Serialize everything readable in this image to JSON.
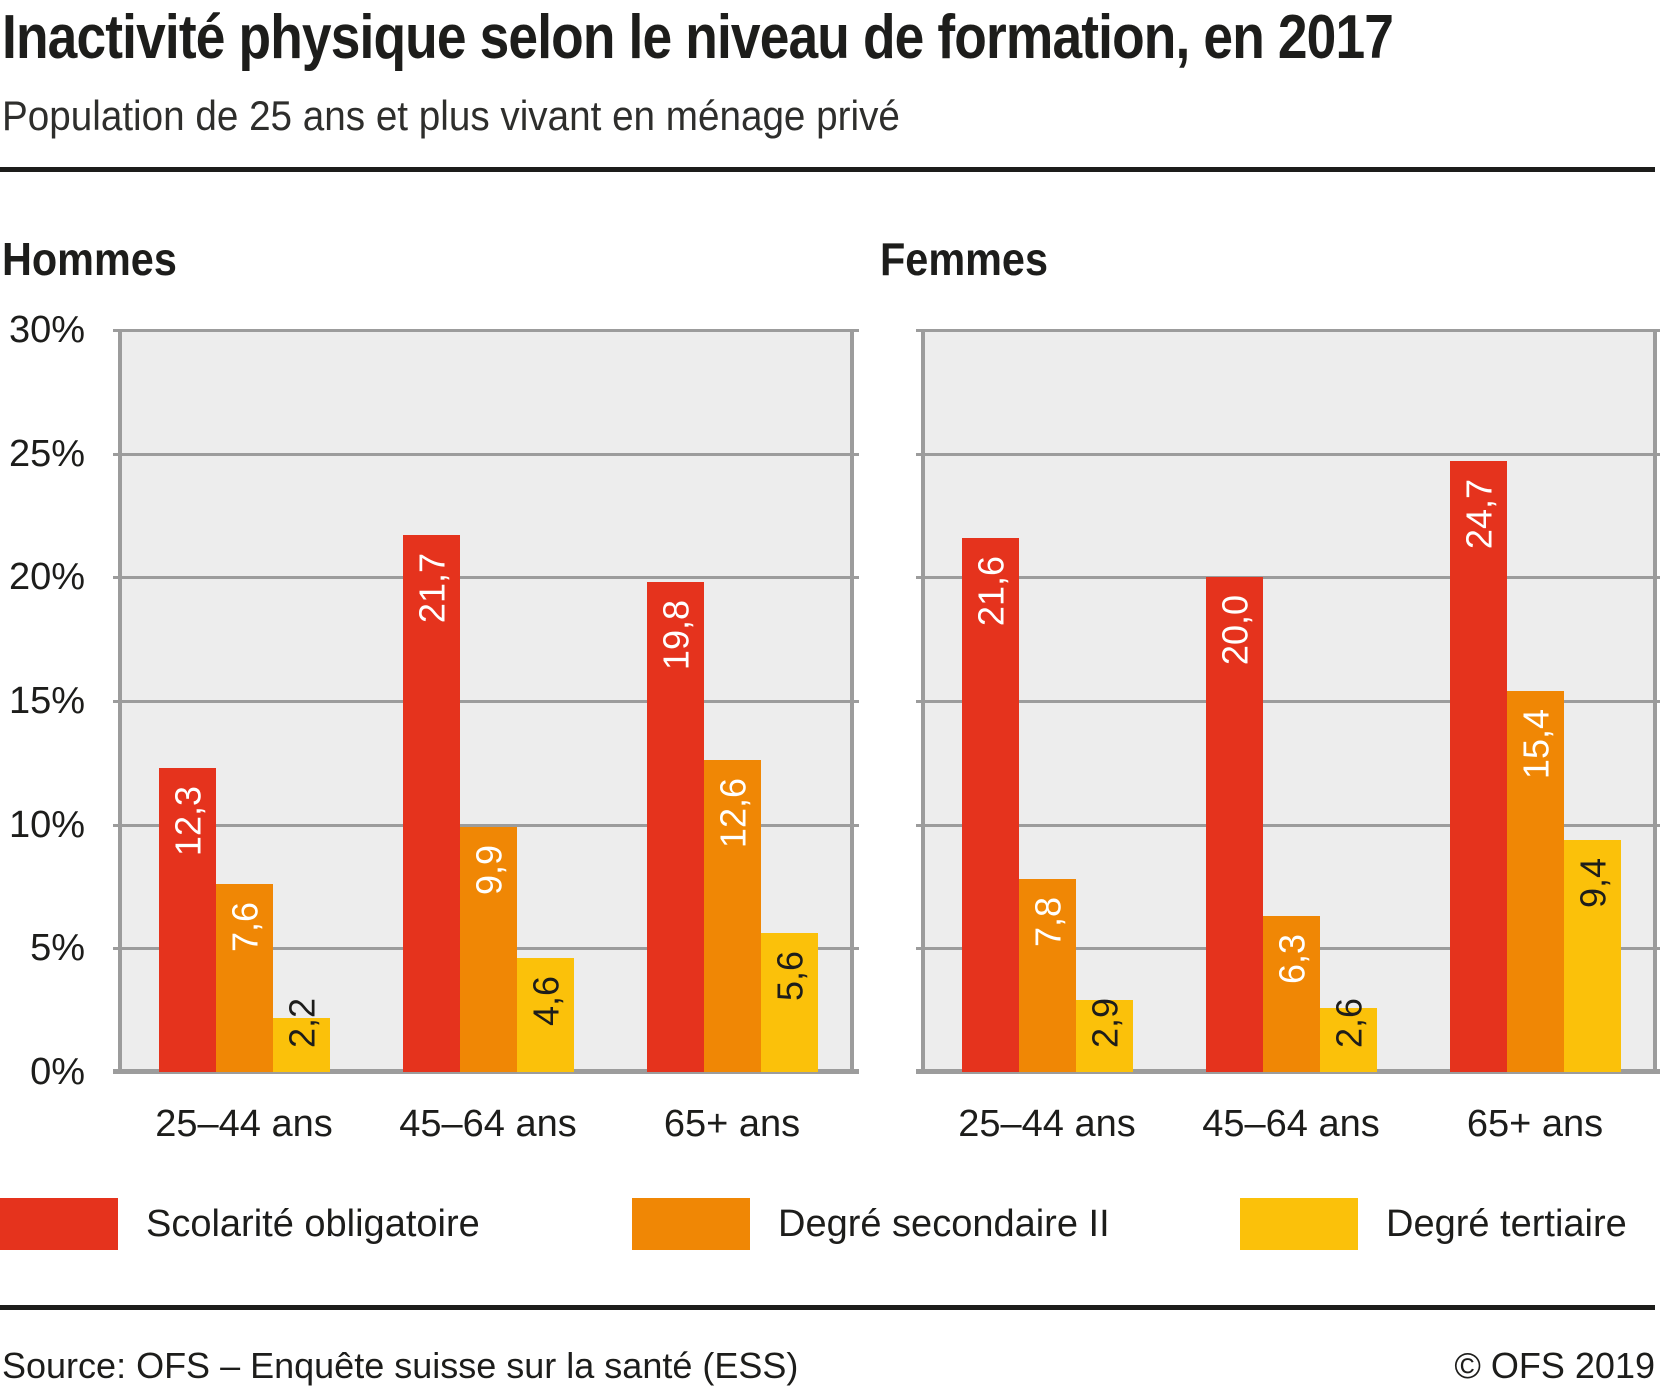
{
  "title": "Inactivité physique selon le niveau de formation, en 2017",
  "subtitle": "Population de 25 ans et plus vivant en ménage privé",
  "colors": {
    "red": "#e5331d",
    "orange": "#f08705",
    "yellow": "#fbc10a",
    "plot_bg": "#ededed",
    "grid": "#9c9c9c",
    "text_dark": "#1d1d1b",
    "bar_label_light": "#ffffff"
  },
  "legend": [
    {
      "label": "Scolarité obligatoire",
      "color": "#e5331d"
    },
    {
      "label": "Degré secondaire II",
      "color": "#f08705"
    },
    {
      "label": "Degré tertiaire",
      "color": "#fbc10a"
    }
  ],
  "y_axis": {
    "ticks": [
      "30%",
      "25%",
      "20%",
      "15%",
      "10%",
      "5%",
      "0%"
    ],
    "max": 30,
    "step": 5,
    "unit": "%"
  },
  "chart_data": [
    {
      "type": "bar",
      "title": "Hommes",
      "categories": [
        "25–44 ans",
        "45–64 ans",
        "65+ ans"
      ],
      "ylim": [
        0,
        30
      ],
      "grid": true,
      "series": [
        {
          "name": "Scolarité obligatoire",
          "color": "#e5331d",
          "values": [
            12.3,
            21.7,
            19.8
          ]
        },
        {
          "name": "Degré secondaire II",
          "color": "#f08705",
          "values": [
            7.6,
            9.9,
            12.6
          ]
        },
        {
          "name": "Degré tertiaire",
          "color": "#fbc10a",
          "values": [
            2.2,
            4.6,
            5.6
          ]
        }
      ]
    },
    {
      "type": "bar",
      "title": "Femmes",
      "categories": [
        "25–44 ans",
        "45–64 ans",
        "65+ ans"
      ],
      "ylim": [
        0,
        30
      ],
      "grid": true,
      "series": [
        {
          "name": "Scolarité obligatoire",
          "color": "#e5331d",
          "values": [
            21.6,
            20.0,
            24.7
          ]
        },
        {
          "name": "Degré secondaire II",
          "color": "#f08705",
          "values": [
            7.8,
            6.3,
            15.4
          ]
        },
        {
          "name": "Degré tertiaire",
          "color": "#fbc10a",
          "values": [
            2.9,
            2.6,
            9.4
          ]
        }
      ]
    }
  ],
  "footer": {
    "source": "Source: OFS – Enquête suisse sur la santé (ESS)",
    "copyright": "© OFS 2019"
  }
}
